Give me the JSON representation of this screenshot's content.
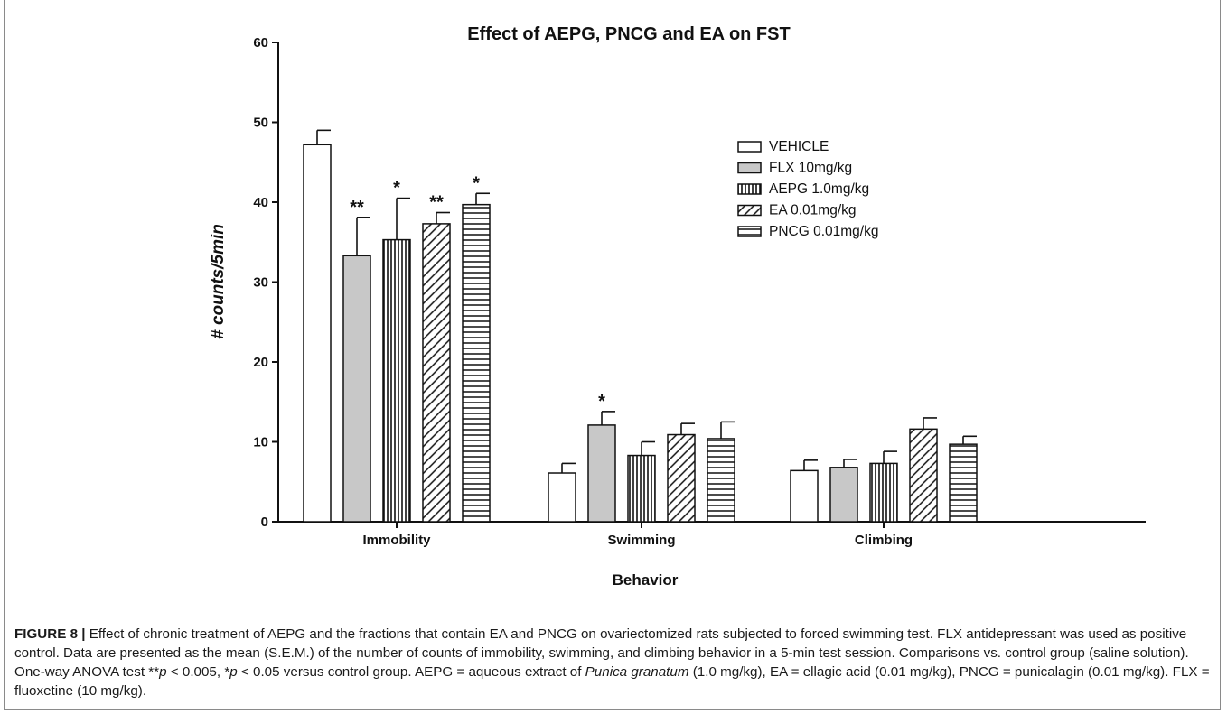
{
  "chart_data": {
    "type": "bar",
    "title": "Effect of AEPG, PNCG and EA on FST",
    "xlabel": "Behavior",
    "ylabel": "# counts/5min",
    "ylim": [
      0,
      60
    ],
    "yticks": [
      "0",
      "10",
      "20",
      "30",
      "40",
      "50",
      "60"
    ],
    "categories": [
      "Immobility",
      "Swimming",
      "Climbing"
    ],
    "legend_position": "upper-right",
    "series": [
      {
        "name": "VEHICLE",
        "pattern": "plain",
        "fill": "#ffffff",
        "values": [
          47.2,
          6.1,
          6.4
        ],
        "errors": [
          1.8,
          1.2,
          1.3
        ],
        "annotations": [
          "",
          "",
          ""
        ]
      },
      {
        "name": "FLX 10mg/kg",
        "pattern": "solid",
        "fill": "#c8c8c8",
        "values": [
          33.3,
          12.1,
          6.8
        ],
        "errors": [
          4.8,
          1.7,
          1.0
        ],
        "annotations": [
          "**",
          "*",
          ""
        ]
      },
      {
        "name": "AEPG 1.0mg/kg",
        "pattern": "vertical-lines",
        "fill": "#ffffff",
        "values": [
          35.3,
          8.3,
          7.3
        ],
        "errors": [
          5.2,
          1.7,
          1.5
        ],
        "annotations": [
          "*",
          "",
          ""
        ]
      },
      {
        "name": "EA  0.01mg/kg",
        "pattern": "diagonal-lines",
        "fill": "#ffffff",
        "values": [
          37.3,
          10.9,
          11.6
        ],
        "errors": [
          1.4,
          1.4,
          1.4
        ],
        "annotations": [
          "**",
          "",
          ""
        ]
      },
      {
        "name": "PNCG 0.01mg/kg",
        "pattern": "horizontal-lines",
        "fill": "#ffffff",
        "values": [
          39.7,
          10.4,
          9.7
        ],
        "errors": [
          1.4,
          2.1,
          1.0
        ],
        "annotations": [
          "*",
          "",
          ""
        ]
      }
    ]
  },
  "caption": {
    "label": "FIGURE 8 |",
    "part1": " Effect of chronic treatment of AEPG and the fractions that contain EA and PNCG on ovariectomized rats subjected to forced swimming test. FLX antidepressant was used as positive control. Data are presented as the mean (S.E.M.) of the number of counts of immobility, swimming, and climbing behavior in a 5-min test session. Comparisons vs. control group (saline solution). One-way ANOVA test **",
    "p1": "p",
    "part2": " < 0.005, *",
    "p2": "p",
    "part3": " < 0.05 versus control group. AEPG = aqueous extract of ",
    "species": "Punica granatum",
    "part4": " (1.0 mg/kg), EA = ellagic acid (0.01 mg/kg), PNCG = punicalagin (0.01 mg/kg). FLX = fluoxetine (10 mg/kg)."
  }
}
